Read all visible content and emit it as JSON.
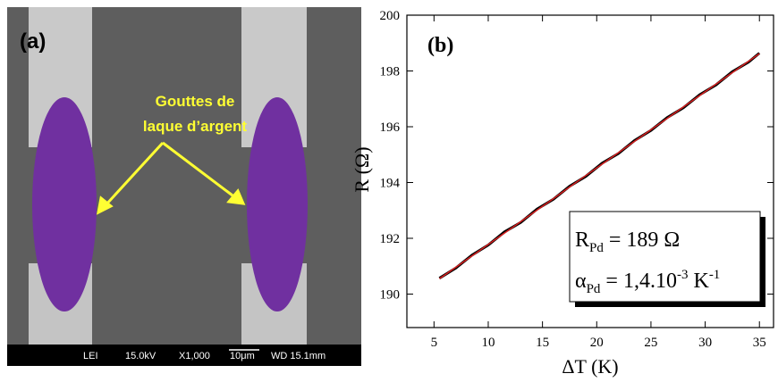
{
  "panel_a": {
    "label": "(a)",
    "annotation": [
      "Gouttes de",
      "laque d’argent"
    ],
    "scale_bar": [
      "LEI",
      "15.0kV",
      "X1,000",
      "10μm",
      "WD 15.1mm"
    ]
  },
  "chart_data": {
    "type": "line",
    "panel_label": "(b)",
    "x_label": "ΔT (K)",
    "y_label": "R (Ω)",
    "x": [
      5.5,
      7,
      8.5,
      10,
      11.5,
      13,
      14.5,
      16,
      17.5,
      19,
      20.5,
      22,
      23.5,
      25,
      26.5,
      28,
      29.5,
      31,
      32.5,
      34,
      35
    ],
    "series": [
      {
        "color": "#000000",
        "values": [
          190.57,
          190.93,
          191.4,
          191.76,
          192.23,
          192.57,
          193.05,
          193.4,
          193.87,
          194.22,
          194.69,
          195.04,
          195.51,
          195.87,
          196.33,
          196.68,
          197.15,
          197.5,
          197.97,
          198.32,
          198.64
        ]
      },
      {
        "color": "#d62020",
        "values": [
          190.55,
          190.96,
          191.37,
          191.78,
          192.19,
          192.6,
          193.01,
          193.42,
          193.84,
          194.25,
          194.66,
          195.07,
          195.48,
          195.89,
          196.3,
          196.71,
          197.12,
          197.53,
          197.94,
          198.35,
          198.62
        ]
      }
    ],
    "xlim": [
      2.5,
      36.3
    ],
    "ylim": [
      188.8,
      200
    ],
    "xticks": [
      5,
      10,
      15,
      20,
      25,
      30,
      35
    ],
    "yticks": [
      190,
      192,
      194,
      196,
      198,
      200
    ],
    "fit_box": {
      "r_symbol": "R",
      "r_sub": "Pd",
      "r_value": " = 189 Ω",
      "alpha_symbol": "α",
      "alpha_sub": "Pd",
      "alpha_value": " = 1,4.10",
      "alpha_exp": "-3",
      "alpha_unit": " K",
      "unit_exp": "-1"
    }
  }
}
